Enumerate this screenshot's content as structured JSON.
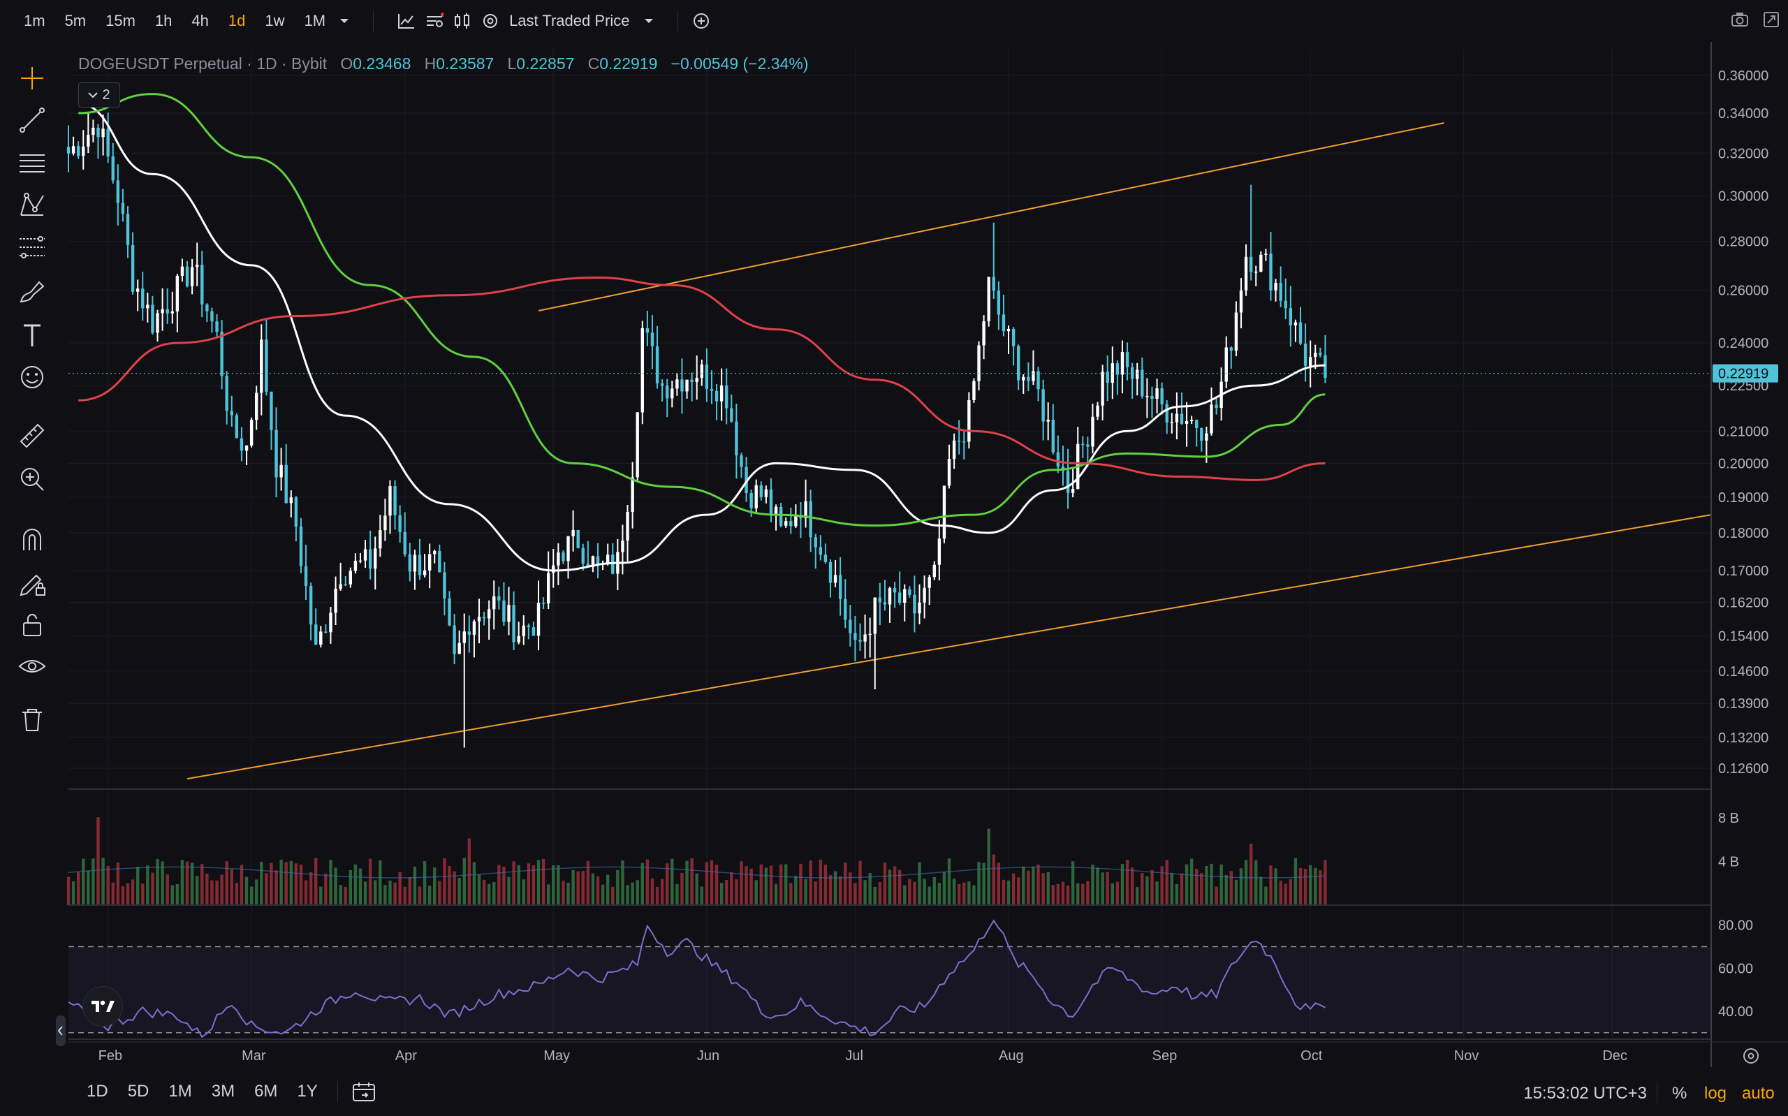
{
  "toolbar": {
    "timeframes": [
      "1m",
      "5m",
      "15m",
      "1h",
      "4h",
      "1d",
      "1w",
      "1M"
    ],
    "active_timeframe": "1d",
    "price_source": "Last Traded Price"
  },
  "legend": {
    "symbol": "DOGEUSDT Perpetual · 1D · Bybit",
    "open_label": "O",
    "open": "0.23468",
    "high_label": "H",
    "high": "0.23587",
    "low_label": "L",
    "low": "0.22857",
    "close_label": "C",
    "close": "0.22919",
    "change": "−0.00549 (−2.34%)",
    "indicators_collapsed_count": "2"
  },
  "bottom": {
    "ranges": [
      "1D",
      "5D",
      "1M",
      "3M",
      "6M",
      "1Y"
    ],
    "clock": "15:53:02 UTC+3",
    "percent": "%",
    "log": "log",
    "auto": "auto"
  },
  "colors": {
    "up": "#4fc3da",
    "down": "#ffffff",
    "accent": "#f7a600",
    "ma_white": "#ffffff",
    "ma_green": "#5fd140",
    "ma_red": "#e0424a",
    "channel": "#f0a030",
    "rsi": "#7e6fd0",
    "last_price_tag": "#4fc3da"
  },
  "chart_data": [
    {
      "type": "candlestick",
      "title": "DOGEUSDT Perpetual · 1D · Bybit",
      "scale": "log",
      "last_price": 0.22919,
      "y_ticks": [
        "0.36000",
        "0.34000",
        "0.32000",
        "0.30000",
        "0.28000",
        "0.26000",
        "0.24000",
        "0.22500",
        "0.21000",
        "0.20000",
        "0.19000",
        "0.18000",
        "0.17000",
        "0.16200",
        "0.15400",
        "0.14600",
        "0.13900",
        "0.13200",
        "0.12600"
      ],
      "x_ticks": [
        "Feb",
        "Mar",
        "Apr",
        "May",
        "Jun",
        "Jul",
        "Aug",
        "Sep",
        "Oct",
        "Nov",
        "Dec"
      ],
      "x_start": "2024-01-24",
      "x_end": "2024-12-21",
      "close_anchors": [
        [
          "2024-01-24",
          0.32
        ],
        [
          "2024-01-30",
          0.335
        ],
        [
          "2024-02-03",
          0.3
        ],
        [
          "2024-02-06",
          0.265
        ],
        [
          "2024-02-10",
          0.248
        ],
        [
          "2024-02-15",
          0.26
        ],
        [
          "2024-02-18",
          0.27
        ],
        [
          "2024-02-23",
          0.242
        ],
        [
          "2024-02-26",
          0.21
        ],
        [
          "2024-02-29",
          0.205
        ],
        [
          "2024-03-03",
          0.238
        ],
        [
          "2024-03-06",
          0.2
        ],
        [
          "2024-03-10",
          0.182
        ],
        [
          "2024-03-14",
          0.15
        ],
        [
          "2024-03-19",
          0.17
        ],
        [
          "2024-03-25",
          0.172
        ],
        [
          "2024-03-29",
          0.19
        ],
        [
          "2024-04-02",
          0.172
        ],
        [
          "2024-04-07",
          0.172
        ],
        [
          "2024-04-11",
          0.148
        ],
        [
          "2024-04-14",
          0.158
        ],
        [
          "2024-04-19",
          0.162
        ],
        [
          "2024-04-24",
          0.155
        ],
        [
          "2024-04-28",
          0.158
        ],
        [
          "2024-05-02",
          0.175
        ],
        [
          "2024-05-06",
          0.178
        ],
        [
          "2024-05-10",
          0.17
        ],
        [
          "2024-05-14",
          0.172
        ],
        [
          "2024-05-17",
          0.2
        ],
        [
          "2024-05-19",
          0.245
        ],
        [
          "2024-05-23",
          0.225
        ],
        [
          "2024-05-27",
          0.228
        ],
        [
          "2024-05-30",
          0.23
        ],
        [
          "2024-06-02",
          0.227
        ],
        [
          "2024-06-05",
          0.222
        ],
        [
          "2024-06-09",
          0.192
        ],
        [
          "2024-06-13",
          0.19
        ],
        [
          "2024-06-16",
          0.18
        ],
        [
          "2024-06-20",
          0.188
        ],
        [
          "2024-06-23",
          0.18
        ],
        [
          "2024-06-27",
          0.168
        ],
        [
          "2024-07-01",
          0.15
        ],
        [
          "2024-07-05",
          0.16
        ],
        [
          "2024-07-09",
          0.163
        ],
        [
          "2024-07-13",
          0.16
        ],
        [
          "2024-07-17",
          0.168
        ],
        [
          "2024-07-20",
          0.2
        ],
        [
          "2024-07-24",
          0.215
        ],
        [
          "2024-07-28",
          0.262
        ],
        [
          "2024-07-31",
          0.245
        ],
        [
          "2024-08-03",
          0.232
        ],
        [
          "2024-08-07",
          0.222
        ],
        [
          "2024-08-11",
          0.202
        ],
        [
          "2024-08-13",
          0.193
        ],
        [
          "2024-08-17",
          0.21
        ],
        [
          "2024-08-20",
          0.228
        ],
        [
          "2024-08-24",
          0.232
        ],
        [
          "2024-08-28",
          0.225
        ],
        [
          "2024-09-01",
          0.218
        ],
        [
          "2024-09-05",
          0.215
        ],
        [
          "2024-09-09",
          0.212
        ],
        [
          "2024-09-12",
          0.218
        ],
        [
          "2024-09-15",
          0.242
        ],
        [
          "2024-09-18",
          0.275
        ],
        [
          "2024-09-22",
          0.27
        ],
        [
          "2024-09-26",
          0.255
        ],
        [
          "2024-09-30",
          0.235
        ],
        [
          "2024-10-04",
          0.229
        ]
      ],
      "lows_highlight": [
        [
          "2024-04-13",
          0.13
        ],
        [
          "2024-07-05",
          0.142
        ]
      ],
      "highs_highlight": [
        [
          "2024-07-29",
          0.288
        ],
        [
          "2024-09-19",
          0.305
        ]
      ],
      "moving_averages": [
        {
          "color": "#ffffff",
          "points": [
            [
              "2024-01-26",
              0.345
            ],
            [
              "2024-02-10",
              0.31
            ],
            [
              "2024-03-01",
              0.27
            ],
            [
              "2024-03-20",
              0.215
            ],
            [
              "2024-04-10",
              0.188
            ],
            [
              "2024-05-01",
              0.17
            ],
            [
              "2024-05-15",
              0.172
            ],
            [
              "2024-06-01",
              0.185
            ],
            [
              "2024-06-15",
              0.2
            ],
            [
              "2024-07-01",
              0.198
            ],
            [
              "2024-07-18",
              0.182
            ],
            [
              "2024-07-28",
              0.18
            ],
            [
              "2024-08-10",
              0.192
            ],
            [
              "2024-08-25",
              0.21
            ],
            [
              "2024-09-05",
              0.218
            ],
            [
              "2024-09-20",
              0.225
            ],
            [
              "2024-10-04",
              0.232
            ]
          ]
        },
        {
          "color": "#5fd140",
          "points": [
            [
              "2024-01-26",
              0.34
            ],
            [
              "2024-02-10",
              0.35
            ],
            [
              "2024-03-01",
              0.318
            ],
            [
              "2024-03-25",
              0.262
            ],
            [
              "2024-04-15",
              0.235
            ],
            [
              "2024-05-05",
              0.2
            ],
            [
              "2024-05-25",
              0.193
            ],
            [
              "2024-06-15",
              0.185
            ],
            [
              "2024-07-05",
              0.182
            ],
            [
              "2024-07-25",
              0.185
            ],
            [
              "2024-08-10",
              0.198
            ],
            [
              "2024-08-25",
              0.203
            ],
            [
              "2024-09-10",
              0.202
            ],
            [
              "2024-09-25",
              0.212
            ],
            [
              "2024-10-04",
              0.222
            ]
          ]
        },
        {
          "color": "#e0424a",
          "points": [
            [
              "2024-01-26",
              0.22
            ],
            [
              "2024-02-15",
              0.24
            ],
            [
              "2024-03-10",
              0.25
            ],
            [
              "2024-04-10",
              0.258
            ],
            [
              "2024-05-10",
              0.265
            ],
            [
              "2024-05-25",
              0.262
            ],
            [
              "2024-06-15",
              0.245
            ],
            [
              "2024-07-05",
              0.227
            ],
            [
              "2024-07-25",
              0.21
            ],
            [
              "2024-08-15",
              0.2
            ],
            [
              "2024-09-05",
              0.196
            ],
            [
              "2024-09-20",
              0.195
            ],
            [
              "2024-10-04",
              0.2
            ]
          ]
        }
      ],
      "channel_lines": [
        [
          [
            "2024-04-28",
            0.252
          ],
          [
            "2024-10-28",
            0.335
          ]
        ],
        [
          [
            "2024-02-17",
            0.124
          ],
          [
            "2024-12-21",
            0.185
          ]
        ]
      ]
    },
    {
      "type": "bar",
      "title": "",
      "y_ticks": [
        "8 B",
        "4 B"
      ],
      "ylim": [
        0,
        10
      ],
      "peaks": [
        [
          "2024-01-30",
          9
        ],
        [
          "2024-04-14",
          7
        ],
        [
          "2024-05-19",
          5
        ],
        [
          "2024-07-28",
          8
        ],
        [
          "2024-09-19",
          7
        ]
      ],
      "avg": 3.0
    },
    {
      "type": "line",
      "title": "",
      "y_ticks": [
        "80.00",
        "60.00",
        "40.00"
      ],
      "ylim": [
        27,
        88
      ],
      "bands": [
        30,
        70
      ],
      "points": [
        [
          "2024-01-24",
          44
        ],
        [
          "2024-02-01",
          33
        ],
        [
          "2024-02-08",
          40
        ],
        [
          "2024-02-15",
          38
        ],
        [
          "2024-02-20",
          28
        ],
        [
          "2024-02-26",
          45
        ],
        [
          "2024-03-01",
          33
        ],
        [
          "2024-03-08",
          30
        ],
        [
          "2024-03-15",
          42
        ],
        [
          "2024-03-22",
          50
        ],
        [
          "2024-03-28",
          44
        ],
        [
          "2024-04-04",
          46
        ],
        [
          "2024-04-10",
          38
        ],
        [
          "2024-04-14",
          42
        ],
        [
          "2024-04-20",
          48
        ],
        [
          "2024-04-28",
          52
        ],
        [
          "2024-05-04",
          60
        ],
        [
          "2024-05-10",
          55
        ],
        [
          "2024-05-14",
          58
        ],
        [
          "2024-05-18",
          62
        ],
        [
          "2024-05-20",
          80
        ],
        [
          "2024-05-24",
          68
        ],
        [
          "2024-05-28",
          72
        ],
        [
          "2024-06-02",
          62
        ],
        [
          "2024-06-08",
          52
        ],
        [
          "2024-06-12",
          40
        ],
        [
          "2024-06-16",
          38
        ],
        [
          "2024-06-20",
          44
        ],
        [
          "2024-06-25",
          38
        ],
        [
          "2024-06-30",
          33
        ],
        [
          "2024-07-05",
          30
        ],
        [
          "2024-07-10",
          40
        ],
        [
          "2024-07-15",
          42
        ],
        [
          "2024-07-20",
          58
        ],
        [
          "2024-07-25",
          68
        ],
        [
          "2024-07-29",
          84
        ],
        [
          "2024-08-02",
          64
        ],
        [
          "2024-08-06",
          56
        ],
        [
          "2024-08-10",
          44
        ],
        [
          "2024-08-14",
          38
        ],
        [
          "2024-08-18",
          52
        ],
        [
          "2024-08-22",
          60
        ],
        [
          "2024-08-26",
          54
        ],
        [
          "2024-08-30",
          48
        ],
        [
          "2024-09-04",
          52
        ],
        [
          "2024-09-08",
          46
        ],
        [
          "2024-09-12",
          48
        ],
        [
          "2024-09-16",
          64
        ],
        [
          "2024-09-20",
          74
        ],
        [
          "2024-09-24",
          62
        ],
        [
          "2024-09-28",
          44
        ],
        [
          "2024-10-01",
          40
        ],
        [
          "2024-10-04",
          44
        ]
      ]
    }
  ]
}
